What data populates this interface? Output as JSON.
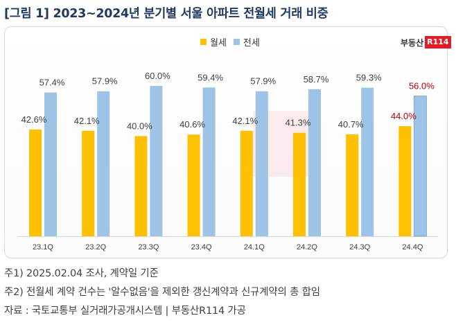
{
  "title": "[그림 1] 2023~2024년 분기별 서울 아파트 전월세 거래 비중",
  "logo": {
    "text": "부동산",
    "box": "R114"
  },
  "colors": {
    "wolse": "#ffc000",
    "jeonse": "#9dc3e6",
    "highlight": "#c00000",
    "label": "#404040"
  },
  "notes": [
    "주1) 2025.02.04 조사, 계약일 기준",
    "주2) 전월세 계약 건수는 '알수없음'을 제외한 갱신계약과 신규계약의 총 합임",
    "자료 : 국토교통부 실거래가공개시스템 | 부동산R114 가공"
  ],
  "chart_data": {
    "type": "bar",
    "categories": [
      "23.1Q",
      "23.2Q",
      "23.3Q",
      "23.4Q",
      "24.1Q",
      "24.2Q",
      "24.3Q",
      "24.4Q"
    ],
    "series": [
      {
        "name": "월세",
        "values": [
          42.6,
          42.1,
          40.0,
          40.6,
          42.1,
          41.3,
          40.7,
          44.0
        ]
      },
      {
        "name": "전세",
        "values": [
          57.4,
          57.9,
          60.0,
          59.4,
          57.9,
          58.7,
          59.3,
          56.0
        ]
      }
    ],
    "data_labels": {
      "월세": [
        "42.6%",
        "42.1%",
        "40.0%",
        "40.6%",
        "42.1%",
        "41.3%",
        "40.7%",
        "44.0%"
      ],
      "전세": [
        "57.4%",
        "57.9%",
        "60.0%",
        "59.4%",
        "57.9%",
        "58.7%",
        "59.3%",
        "56.0%"
      ]
    },
    "highlight_category": "24.4Q",
    "ylim": [
      0,
      60
    ],
    "legend_position": "top",
    "grid": false
  }
}
